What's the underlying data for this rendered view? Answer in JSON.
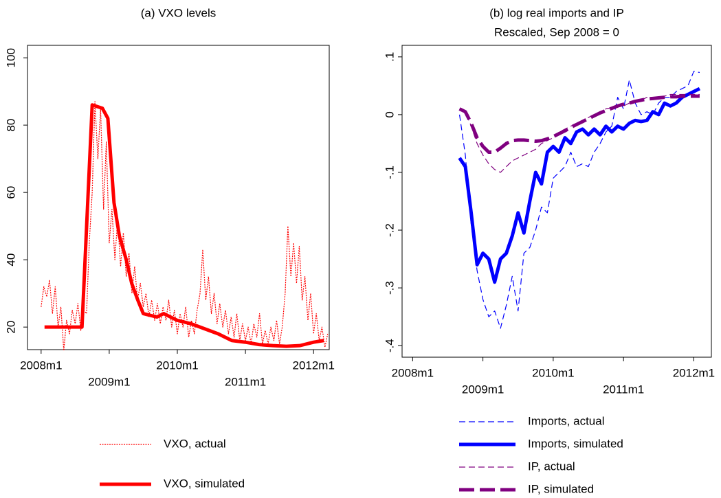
{
  "chart_data": [
    {
      "type": "line",
      "title": "(a) VXO levels",
      "xlim": [
        2007.8,
        2012.23
      ],
      "ylim": [
        13.3,
        103.7
      ],
      "xticks": [
        {
          "value": 2008,
          "label": "2008m1"
        },
        {
          "value": 2009,
          "label": "2009m1"
        },
        {
          "value": 2010,
          "label": "2010m1"
        },
        {
          "value": 2011,
          "label": "2011m1"
        },
        {
          "value": 2012,
          "label": "2012m1"
        }
      ],
      "yticks": [
        20,
        40,
        60,
        80,
        100
      ],
      "series": [
        {
          "name": "VXO, actual",
          "color": "#ff0000",
          "line_style": "dotted",
          "line_width": "thin",
          "x": [
            2008,
            2008.04,
            2008.083,
            2008.123,
            2008.167,
            2008.207,
            2008.25,
            2008.29,
            2008.333,
            2008.373,
            2008.417,
            2008.457,
            2008.5,
            2008.54,
            2008.583,
            2008.623,
            2008.667,
            2008.707,
            2008.75,
            2008.79,
            2008.833,
            2008.873,
            2008.917,
            2008.957,
            2009,
            2009.04,
            2009.083,
            2009.123,
            2009.167,
            2009.207,
            2009.25,
            2009.29,
            2009.333,
            2009.373,
            2009.417,
            2009.457,
            2009.5,
            2009.54,
            2009.583,
            2009.623,
            2009.667,
            2009.707,
            2009.75,
            2009.79,
            2009.833,
            2009.873,
            2009.917,
            2009.957,
            2010,
            2010.04,
            2010.083,
            2010.123,
            2010.167,
            2010.207,
            2010.25,
            2010.29,
            2010.333,
            2010.373,
            2010.417,
            2010.457,
            2010.5,
            2010.54,
            2010.583,
            2010.623,
            2010.667,
            2010.707,
            2010.75,
            2010.79,
            2010.833,
            2010.873,
            2010.917,
            2010.957,
            2011,
            2011.04,
            2011.083,
            2011.123,
            2011.167,
            2011.207,
            2011.25,
            2011.29,
            2011.333,
            2011.373,
            2011.417,
            2011.457,
            2011.5,
            2011.54,
            2011.583,
            2011.623,
            2011.667,
            2011.707,
            2011.75,
            2011.79,
            2011.833,
            2011.873,
            2011.917,
            2011.957,
            2012,
            2012.04,
            2012.083,
            2012.123,
            2012.167,
            2012.207
          ],
          "values": [
            26,
            32,
            29,
            34,
            24,
            32,
            20,
            26,
            13,
            22,
            18,
            25,
            21,
            27,
            19,
            25,
            24,
            45,
            60,
            87,
            70,
            85,
            55,
            75,
            45,
            55,
            40,
            52,
            38,
            48,
            35,
            42,
            30,
            38,
            28,
            33,
            26,
            30,
            23,
            28,
            22,
            27,
            21,
            26,
            22,
            28,
            20,
            25,
            18,
            24,
            20,
            26,
            17,
            22,
            18,
            25,
            30,
            43,
            28,
            35,
            24,
            30,
            21,
            27,
            20,
            25,
            18,
            23,
            17,
            24,
            16,
            21,
            16,
            20,
            15,
            21,
            17,
            24,
            15,
            19,
            15,
            20,
            16,
            22,
            15,
            20,
            30,
            50,
            35,
            45,
            33,
            44,
            28,
            35,
            22,
            30,
            18,
            24,
            16,
            20,
            14,
            18
          ]
        },
        {
          "name": "VXO, simulated",
          "color": "#ff0000",
          "line_style": "solid",
          "line_width": "thick",
          "x": [
            2008.05,
            2008.6,
            2008.75,
            2008.9,
            2008.98,
            2009.07,
            2009.15,
            2009.25,
            2009.33,
            2009.42,
            2009.5,
            2009.6,
            2009.7,
            2009.8,
            2009.9,
            2010.0,
            2010.2,
            2010.4,
            2010.6,
            2010.8,
            2011.0,
            2011.2,
            2011.4,
            2011.6,
            2011.8,
            2012.0,
            2012.15
          ],
          "values": [
            20,
            20,
            86,
            85,
            82,
            57,
            47,
            40,
            33,
            28,
            24,
            23.5,
            23,
            24,
            23,
            22,
            21,
            19.5,
            18,
            16,
            15.5,
            14.8,
            14.5,
            14.3,
            14.5,
            15.5,
            16
          ]
        }
      ]
    },
    {
      "type": "line",
      "title": "(b) log real imports and IP",
      "subtitle": "Rescaled, Sep 2008 = 0",
      "xlim": [
        2007.85,
        2012.25
      ],
      "ylim": [
        -0.42,
        0.12
      ],
      "xticks": [
        {
          "value": 2008,
          "label": "2008m1"
        },
        {
          "value": 2009,
          "label": "2009m1"
        },
        {
          "value": 2010,
          "label": "2010m1"
        },
        {
          "value": 2011,
          "label": "2011m1"
        },
        {
          "value": 2012,
          "label": "2012m1"
        }
      ],
      "yticks": [
        {
          "value": -0.4,
          "label": "-.4"
        },
        {
          "value": -0.3,
          "label": "-.3"
        },
        {
          "value": -0.2,
          "label": "-.2"
        },
        {
          "value": -0.1,
          "label": "-.1"
        },
        0,
        {
          "value": 0.1,
          "label": ".1"
        }
      ],
      "x": [
        2008.667,
        2008.75,
        2008.833,
        2008.917,
        2009,
        2009.083,
        2009.167,
        2009.25,
        2009.333,
        2009.417,
        2009.5,
        2009.583,
        2009.667,
        2009.75,
        2009.833,
        2009.917,
        2010,
        2010.083,
        2010.167,
        2010.25,
        2010.333,
        2010.417,
        2010.5,
        2010.583,
        2010.667,
        2010.75,
        2010.833,
        2010.917,
        2011,
        2011.083,
        2011.167,
        2011.25,
        2011.333,
        2011.417,
        2011.5,
        2011.583,
        2011.667,
        2011.75,
        2011.833,
        2011.917,
        2012,
        2012.083
      ],
      "series": [
        {
          "name": "Imports, actual",
          "color": "#0000ff",
          "line_style": "dashed",
          "line_width": "thin",
          "values": [
            0.0,
            -0.07,
            -0.19,
            -0.27,
            -0.32,
            -0.35,
            -0.34,
            -0.37,
            -0.33,
            -0.28,
            -0.34,
            -0.24,
            -0.23,
            -0.2,
            -0.16,
            -0.17,
            -0.11,
            -0.1,
            -0.09,
            -0.065,
            -0.09,
            -0.085,
            -0.09,
            -0.065,
            -0.05,
            -0.03,
            -0.02,
            0.03,
            0.01,
            0.06,
            0.02,
            0.0,
            0.005,
            0.0,
            0.02,
            0.03,
            0.03,
            0.04,
            0.045,
            0.05,
            0.075,
            0.073
          ]
        },
        {
          "name": "Imports, simulated",
          "color": "#0000ff",
          "line_style": "solid",
          "line_width": "thick",
          "values": [
            -0.075,
            -0.09,
            -0.17,
            -0.26,
            -0.24,
            -0.25,
            -0.29,
            -0.25,
            -0.24,
            -0.21,
            -0.17,
            -0.205,
            -0.15,
            -0.1,
            -0.12,
            -0.065,
            -0.055,
            -0.065,
            -0.04,
            -0.05,
            -0.03,
            -0.025,
            -0.035,
            -0.025,
            -0.035,
            -0.02,
            -0.03,
            -0.02,
            -0.025,
            -0.015,
            -0.01,
            -0.012,
            -0.01,
            0.005,
            0.0,
            0.02,
            0.015,
            0.02,
            0.03,
            0.035,
            0.04,
            0.045
          ]
        },
        {
          "name": "IP, actual",
          "color": "#800080",
          "line_style": "dashed",
          "line_width": "thin",
          "values": [
            0.01,
            0.005,
            -0.02,
            -0.05,
            -0.07,
            -0.085,
            -0.095,
            -0.1,
            -0.09,
            -0.08,
            -0.075,
            -0.07,
            -0.065,
            -0.06,
            -0.05,
            -0.045,
            -0.04,
            -0.03,
            -0.025,
            -0.02,
            -0.015,
            -0.01,
            -0.005,
            0.0,
            0.005,
            0.01,
            0.012,
            0.015,
            0.015,
            0.02,
            0.025,
            0.025,
            0.03,
            0.03,
            0.03,
            0.032,
            0.035,
            0.035,
            0.035,
            0.035,
            0.035,
            0.035
          ]
        },
        {
          "name": "IP, simulated",
          "color": "#800080",
          "line_style": "longdash",
          "line_width": "thick",
          "values": [
            0.01,
            0.005,
            -0.015,
            -0.04,
            -0.055,
            -0.065,
            -0.065,
            -0.058,
            -0.05,
            -0.045,
            -0.044,
            -0.044,
            -0.045,
            -0.046,
            -0.045,
            -0.042,
            -0.038,
            -0.033,
            -0.028,
            -0.022,
            -0.017,
            -0.012,
            -0.007,
            -0.002,
            0.003,
            0.007,
            0.011,
            0.015,
            0.018,
            0.02,
            0.023,
            0.025,
            0.027,
            0.028,
            0.029,
            0.03,
            0.031,
            0.031,
            0.032,
            0.032,
            0.032,
            0.032
          ]
        }
      ]
    }
  ]
}
